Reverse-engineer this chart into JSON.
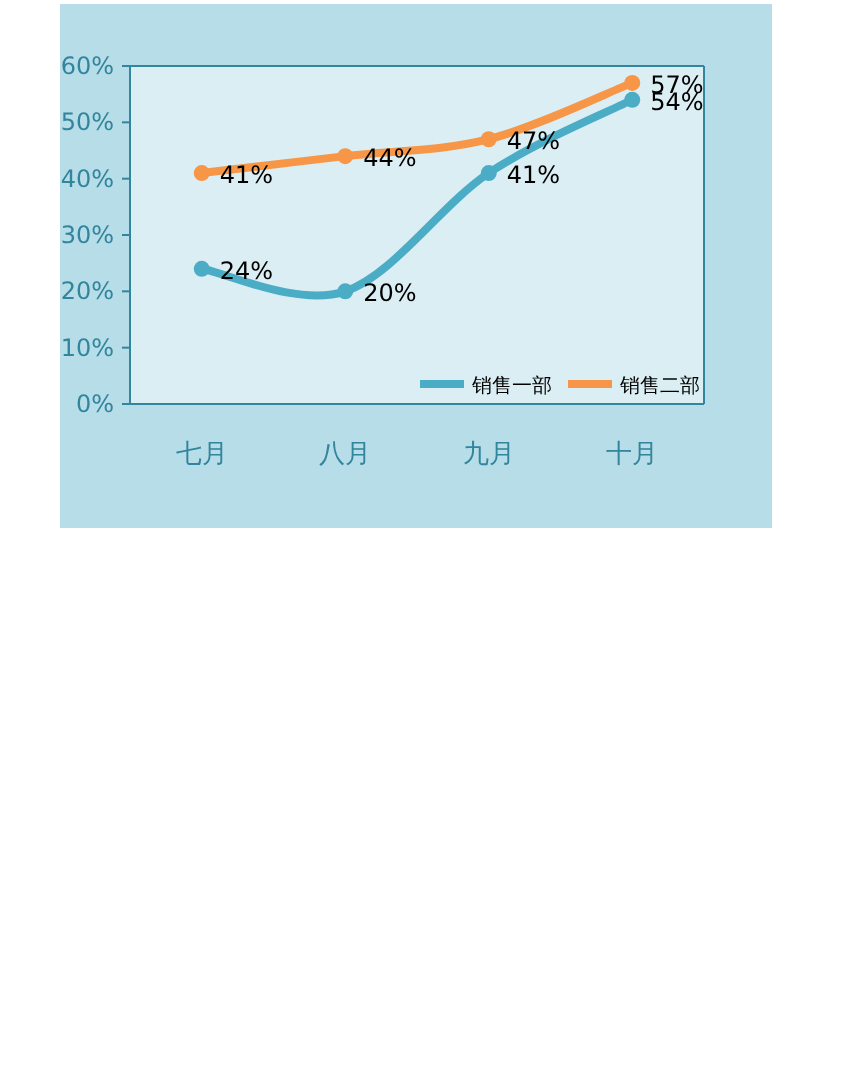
{
  "chart_data": {
    "type": "line",
    "categories": [
      "七月",
      "八月",
      "九月",
      "十月"
    ],
    "series": [
      {
        "name": "销售一部",
        "color": "#4bacc6",
        "values": [
          24,
          20,
          41,
          54
        ],
        "value_labels": [
          "24%",
          "20%",
          "41%",
          "54%"
        ]
      },
      {
        "name": "销售二部",
        "color": "#f79646",
        "values": [
          41,
          44,
          47,
          57
        ],
        "value_labels": [
          "41%",
          "44%",
          "47%",
          "57%"
        ]
      }
    ],
    "ylim": [
      0,
      60
    ],
    "yticks": [
      {
        "value": 0,
        "label": "0%"
      },
      {
        "value": 10,
        "label": "10%"
      },
      {
        "value": 20,
        "label": "20%"
      },
      {
        "value": 30,
        "label": "30%"
      },
      {
        "value": 40,
        "label": "40%"
      },
      {
        "value": 50,
        "label": "50%"
      },
      {
        "value": 60,
        "label": "60%"
      }
    ],
    "grid": false,
    "legend": "bottom right",
    "marker": "circle",
    "line_style": "solid"
  }
}
